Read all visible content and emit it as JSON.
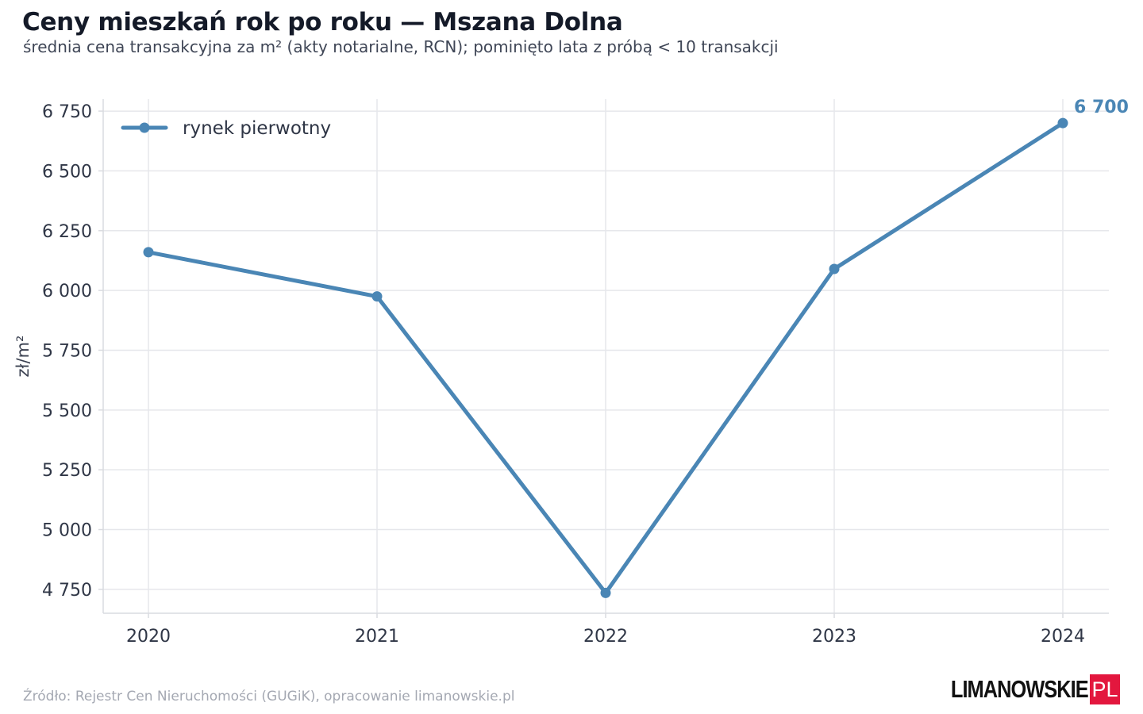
{
  "header": {
    "title": "Ceny mieszkań rok po roku — Mszana Dolna",
    "subtitle": "średnia cena transakcyjna za m² (akty notarialne, RCN); pominięto lata z próbą < 10 transakcji"
  },
  "footer": {
    "source": "Źródło: Rejestr Cen Nieruchomości (GUGiK), opracowanie limanowskie.pl",
    "logo_word": "LIMANOWSKIE",
    "logo_box": "PL"
  },
  "colors": {
    "series": "#4a86b5",
    "grid": "#e6e7eb",
    "axis": "#d9dbe0",
    "logo_red": "#e3173e"
  },
  "chart_data": {
    "type": "line",
    "x": [
      2020,
      2021,
      2022,
      2023,
      2024
    ],
    "x_tick_labels": [
      "2020",
      "2021",
      "2022",
      "2023",
      "2024"
    ],
    "series": [
      {
        "name": "rynek pierwotny",
        "values": [
          6160,
          5975,
          4735,
          6090,
          6700
        ]
      }
    ],
    "ylabel": "zł/m²",
    "xlabel": "",
    "ylim": [
      4650,
      6800
    ],
    "y_ticks": [
      4750,
      5000,
      5250,
      5500,
      5750,
      6000,
      6250,
      6500,
      6750
    ],
    "y_tick_labels": [
      "4 750",
      "5 000",
      "5 250",
      "5 500",
      "5 750",
      "6 000",
      "6 250",
      "6 500",
      "6 750"
    ],
    "last_value_label": "6 700",
    "grid": true,
    "legend_position": "top-left"
  }
}
